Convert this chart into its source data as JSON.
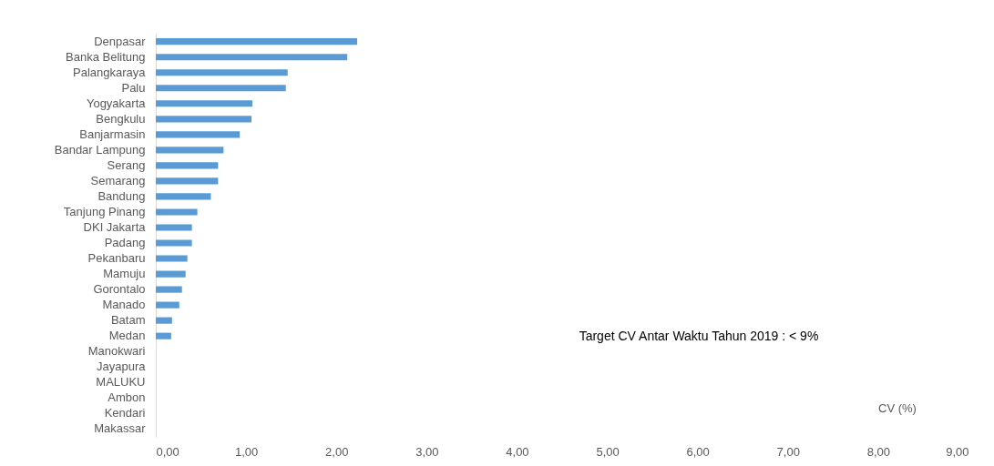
{
  "chart_data": {
    "type": "bar",
    "orientation": "horizontal",
    "xlabel": "CV (%)",
    "annotations": [
      "Target CV Antar Waktu Tahun 2019 : < 9%"
    ],
    "categories": [
      "Denpasar",
      "Banka Belitung",
      "Palangkaraya",
      "Palu",
      "Yogyakarta",
      "Bengkulu",
      "Banjarmasin",
      "Bandar Lampung",
      "Serang",
      "Semarang",
      "Bandung",
      "Tanjung Pinang",
      "DKI Jakarta",
      "Padang",
      "Pekanbaru",
      "Mamuju",
      "Gorontalo",
      "Manado",
      "Batam",
      "Medan",
      "Manokwari",
      "Jayapura",
      "MALUKU",
      "Ambon",
      "Kendari",
      "Makassar"
    ],
    "values": [
      2.23,
      2.12,
      1.46,
      1.44,
      1.07,
      1.06,
      0.93,
      0.75,
      0.69,
      0.69,
      0.61,
      0.46,
      0.4,
      0.4,
      0.35,
      0.33,
      0.29,
      0.26,
      0.18,
      0.17,
      0,
      0,
      0,
      0,
      0,
      0
    ],
    "color": "#5b9bd5",
    "xlim": [
      0,
      9
    ],
    "xticks": [
      {
        "value": 0,
        "label": "0,00"
      },
      {
        "value": 1,
        "label": "1,00"
      },
      {
        "value": 2,
        "label": "2,00"
      },
      {
        "value": 3,
        "label": "3,00"
      },
      {
        "value": 4,
        "label": "4,00"
      },
      {
        "value": 5,
        "label": "5,00"
      },
      {
        "value": 6,
        "label": "6,00"
      },
      {
        "value": 7,
        "label": "7,00"
      },
      {
        "value": 8,
        "label": "8,00"
      },
      {
        "value": 9,
        "label": "9,00"
      }
    ],
    "grid": false
  }
}
